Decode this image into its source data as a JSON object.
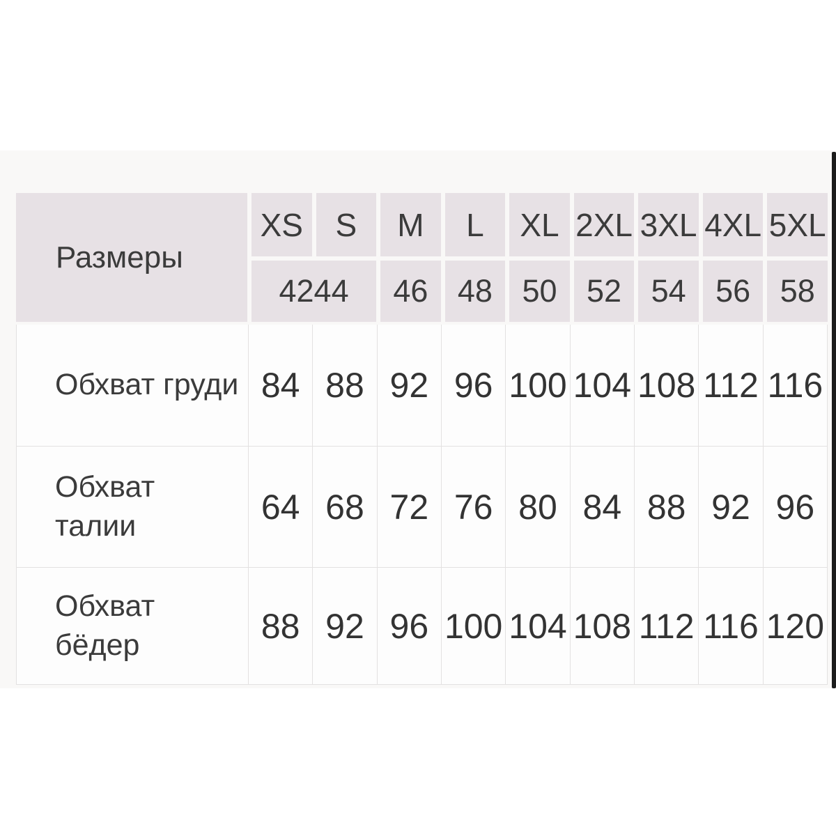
{
  "chart_data": {
    "type": "table",
    "title": "Размеры",
    "corner_label": "Размеры",
    "size_labels": [
      "XS",
      "S",
      "M",
      "L",
      "XL",
      "2XL",
      "3XL",
      "4XL",
      "5XL"
    ],
    "numeric_sizes": {
      "merged_xs_s": "4244",
      "rest": [
        "46",
        "48",
        "50",
        "52",
        "54",
        "56",
        "58"
      ]
    },
    "rows": [
      {
        "label": "Обхват груди",
        "values": [
          "84",
          "88",
          "92",
          "96",
          "100",
          "104",
          "108",
          "112",
          "116"
        ]
      },
      {
        "label": "Обхват талии",
        "values": [
          "64",
          "68",
          "72",
          "76",
          "80",
          "84",
          "88",
          "92",
          "96"
        ]
      },
      {
        "label": "Обхват бёдер",
        "values": [
          "88",
          "92",
          "96",
          "100",
          "104",
          "108",
          "112",
          "116",
          "120"
        ]
      }
    ]
  },
  "colors": {
    "header_bg": "#e7e1e5",
    "table_bg": "#fdfdfd",
    "border": "#e3e1e1",
    "text": "#373737",
    "scrollbar": "#1c1c1c"
  }
}
